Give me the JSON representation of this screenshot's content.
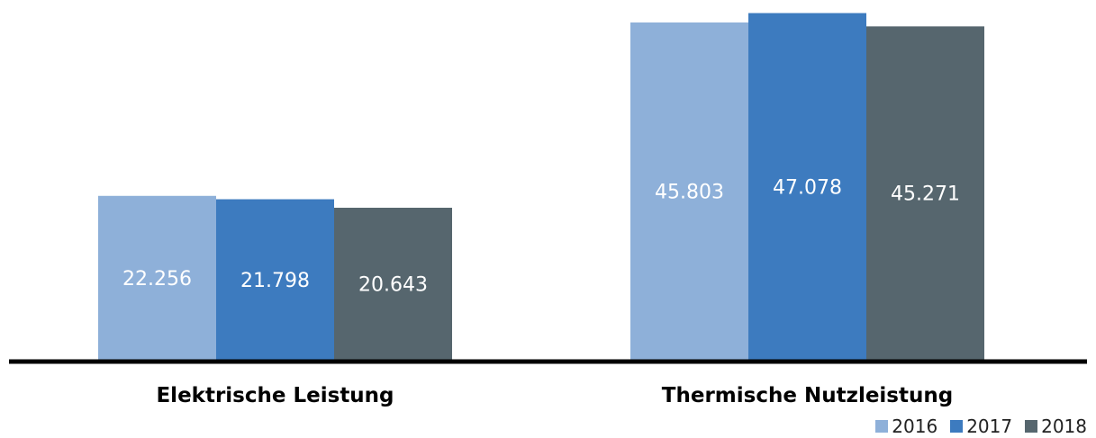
{
  "chart_data": {
    "type": "bar",
    "categories": [
      "Elektrische Leistung",
      "Thermische Nutzleistung"
    ],
    "series": [
      {
        "name": "2016",
        "values": [
          22.256,
          45.803
        ],
        "labels": [
          "22.256",
          "45.803"
        ],
        "color": "#8eb0d9"
      },
      {
        "name": "2017",
        "values": [
          21.798,
          47.078
        ],
        "labels": [
          "21.798",
          "47.078"
        ],
        "color": "#3d7bbf"
      },
      {
        "name": "2018",
        "values": [
          20.643,
          45.271
        ],
        "labels": [
          "20.643",
          "45.271"
        ],
        "color": "#56666e"
      }
    ],
    "ylim": [
      0,
      48
    ],
    "grid": false,
    "legend_position": "bottom-right",
    "axis_color": "#000000",
    "label_color": "#ffffff"
  }
}
